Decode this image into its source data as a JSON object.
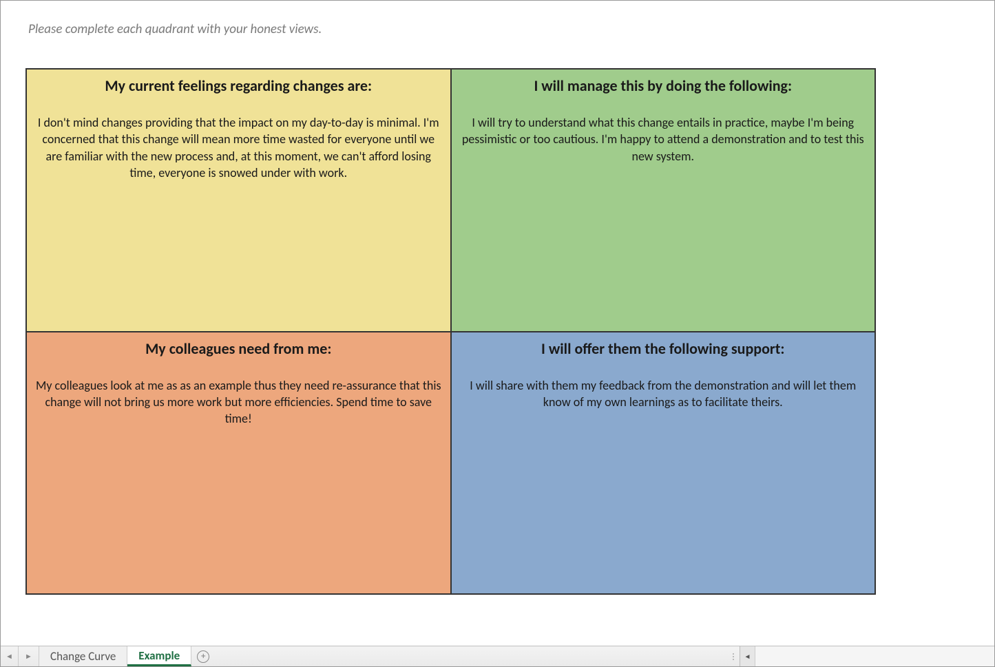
{
  "instruction": "Please complete each quadrant with your honest views.",
  "quadrants": {
    "top_left": {
      "title": "My current feelings regarding changes are:",
      "body": "I don't mind changes providing that the impact on my day-to-day is minimal. I'm concerned that this change will mean more time wasted for everyone until we are familiar with the new process and, at this moment, we can't afford losing time, everyone is snowed under with work.",
      "bg_color": "#f0e297"
    },
    "top_right": {
      "title": "I will manage this by doing the following:",
      "body": "I will try to understand what this change entails in practice, maybe I'm being pessimistic or too cautious. I'm happy to attend a demonstration and to test this new system.",
      "bg_color": "#a0cc8c"
    },
    "bottom_left": {
      "title": "My colleagues need from me:",
      "body": "My colleagues look at me as as an example thus they need re-assurance that this change will not bring us more work but more efficiencies. Spend time to save time!",
      "bg_color": "#eda77d"
    },
    "bottom_right": {
      "title": "I will offer them the following support:",
      "body": "I will share with them my feedback from the demonstration and will let them know of my own learnings as to facilitate theirs.",
      "bg_color": "#8aa9ce"
    }
  },
  "tabs": {
    "inactive": "Change Curve",
    "active": "Example"
  },
  "title_fontsize": 22,
  "body_fontsize": 18,
  "instruction_color": "#7a7a7a",
  "border_color": "#333333"
}
